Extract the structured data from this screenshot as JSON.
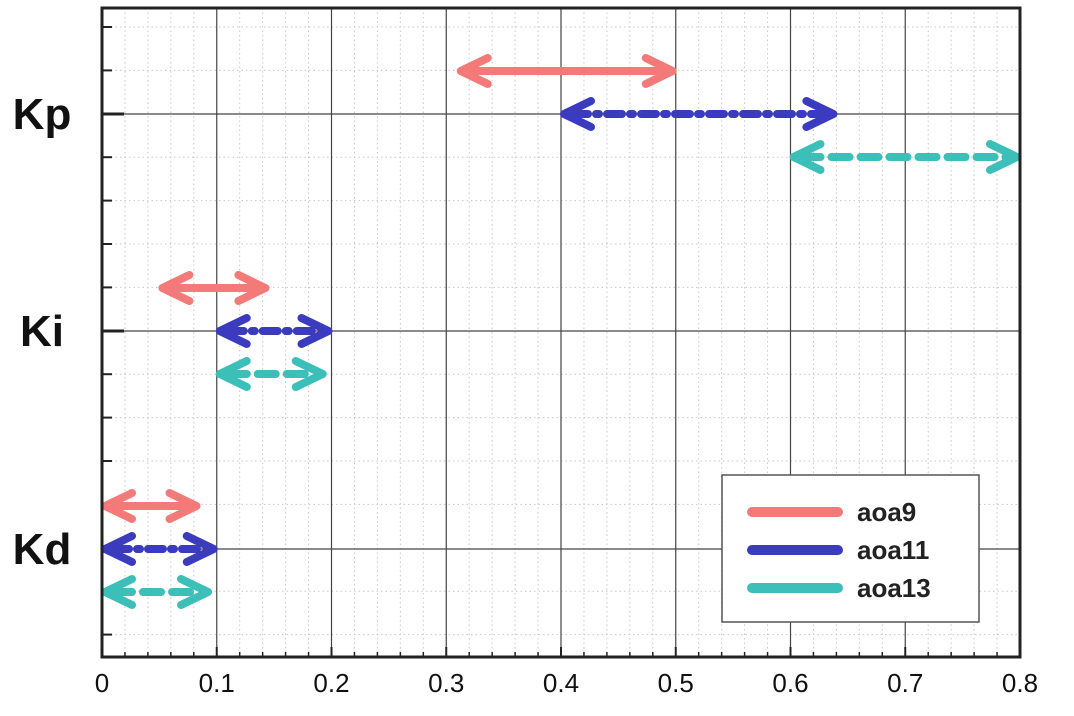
{
  "chart_data": {
    "type": "range",
    "categories": [
      "Kp",
      "Ki",
      "Kd"
    ],
    "xlim": [
      0,
      0.8
    ],
    "x_ticks": [
      "0",
      "0.1",
      "0.2",
      "0.3",
      "0.4",
      "0.5",
      "0.6",
      "0.7",
      "0.8"
    ],
    "grid": true,
    "legend_position": "bottom-right",
    "series": [
      {
        "name": "aoa9",
        "color": "#f47a7a",
        "style": "solid",
        "ranges": [
          {
            "category": "Kp",
            "start": 0.31,
            "end": 0.5
          },
          {
            "category": "Ki",
            "start": 0.05,
            "end": 0.145
          },
          {
            "category": "Kd",
            "start": 0.0,
            "end": 0.085
          }
        ]
      },
      {
        "name": "aoa11",
        "color": "#3b3bbf",
        "style": "dashdot",
        "ranges": [
          {
            "category": "Kp",
            "start": 0.4,
            "end": 0.64
          },
          {
            "category": "Ki",
            "start": 0.1,
            "end": 0.2
          },
          {
            "category": "Kd",
            "start": 0.0,
            "end": 0.1
          }
        ]
      },
      {
        "name": "aoa13",
        "color": "#3cbfb8",
        "style": "dashed",
        "ranges": [
          {
            "category": "Kp",
            "start": 0.6,
            "end": 0.8
          },
          {
            "category": "Ki",
            "start": 0.1,
            "end": 0.195
          },
          {
            "category": "Kd",
            "start": 0.0,
            "end": 0.095
          }
        ]
      }
    ]
  }
}
